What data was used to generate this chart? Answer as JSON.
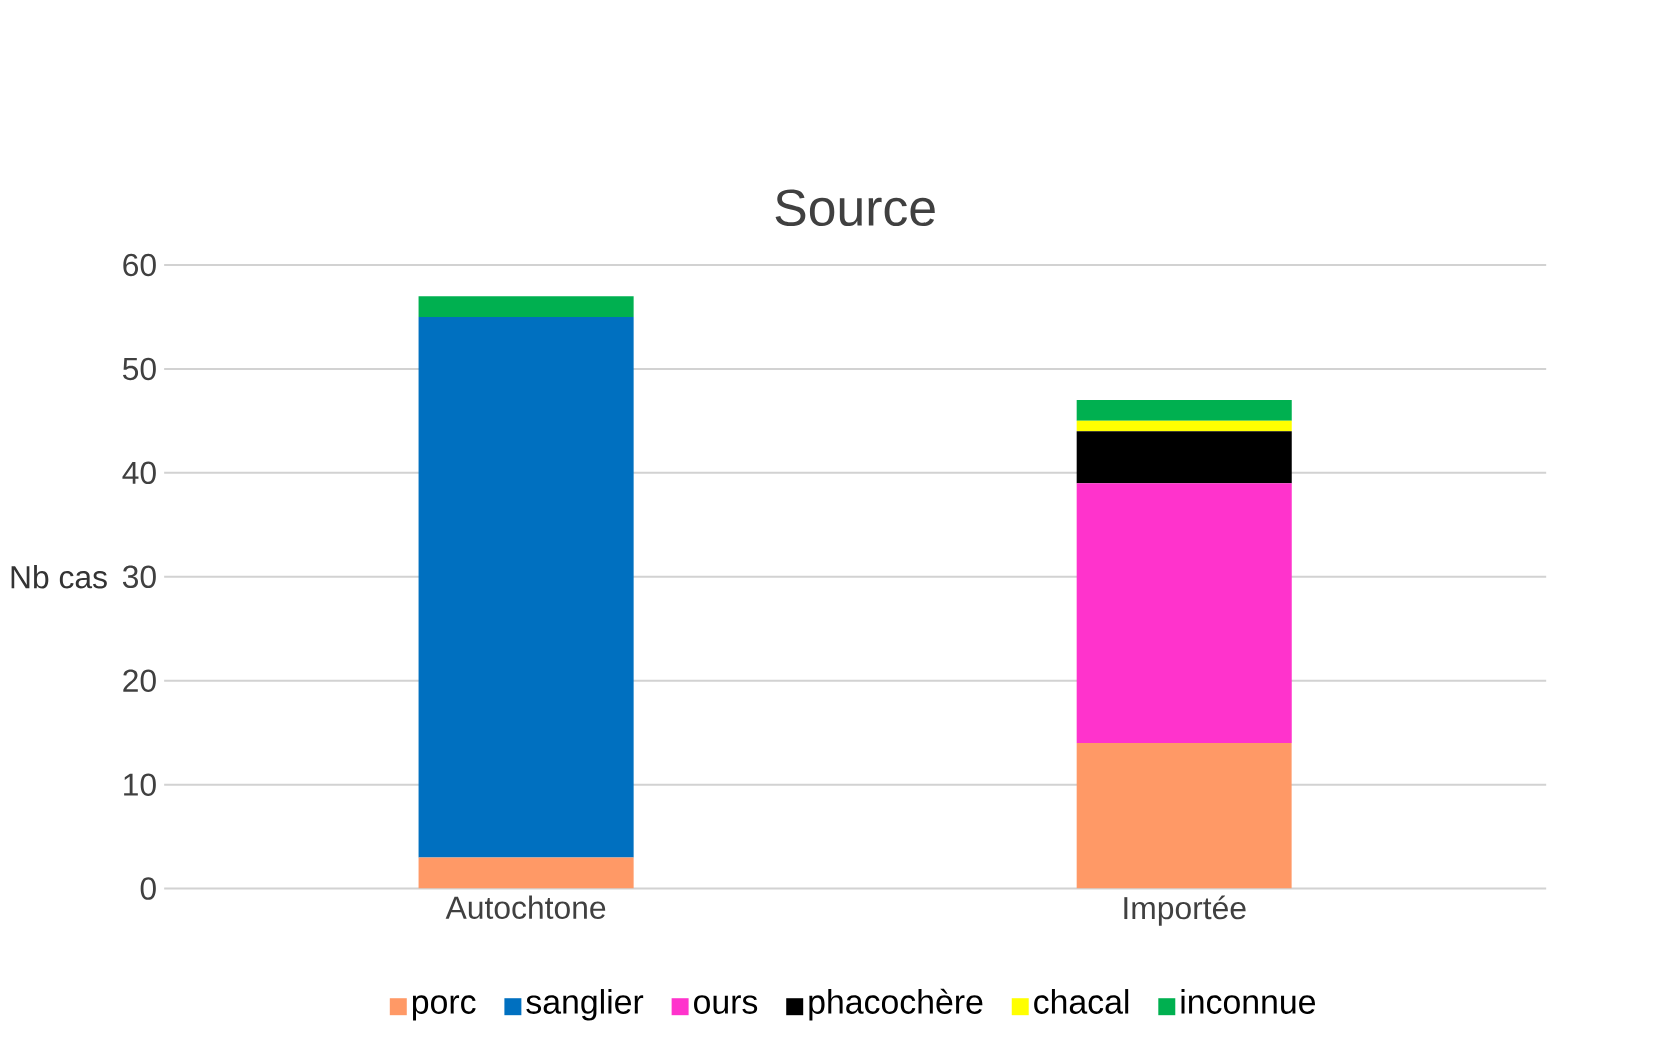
{
  "chart_data": {
    "type": "bar",
    "title": "Source",
    "ylabel": "Nb cas",
    "stacked": true,
    "categories": [
      "Autochtone",
      "Importée"
    ],
    "series": [
      {
        "name": "porc",
        "color": "#ff9966",
        "values": [
          3,
          14
        ]
      },
      {
        "name": "sanglier",
        "color": "#0070c0",
        "values": [
          52,
          0
        ]
      },
      {
        "name": "ours",
        "color": "#ff33cc",
        "values": [
          0,
          25
        ]
      },
      {
        "name": "phacochère",
        "color": "#000000",
        "values": [
          0,
          5
        ]
      },
      {
        "name": "chacal",
        "color": "#ffff00",
        "values": [
          0,
          1
        ]
      },
      {
        "name": "inconnue",
        "color": "#00b050",
        "values": [
          2,
          2
        ]
      }
    ],
    "ylim": [
      0,
      60
    ],
    "yticks": [
      0,
      10,
      20,
      30,
      40,
      50,
      60
    ],
    "grid": "y",
    "legend": "bottom"
  }
}
